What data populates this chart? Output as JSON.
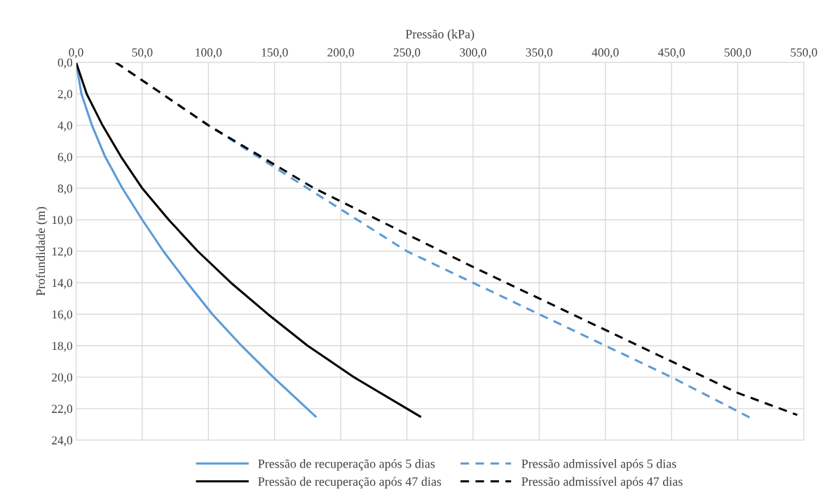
{
  "chart_data": {
    "type": "line",
    "xlabel": "Pressão (kPa)",
    "ylabel": "Profundidade (m)",
    "xlim": [
      0,
      550
    ],
    "ylim": [
      24,
      0
    ],
    "xticks": [
      {
        "value": 0,
        "label": "0,0"
      },
      {
        "value": 50,
        "label": "50,0"
      },
      {
        "value": 100,
        "label": "100,0"
      },
      {
        "value": 150,
        "label": "150,0"
      },
      {
        "value": 200,
        "label": "200,0"
      },
      {
        "value": 250,
        "label": "250,0"
      },
      {
        "value": 300,
        "label": "300,0"
      },
      {
        "value": 350,
        "label": "350,0"
      },
      {
        "value": 400,
        "label": "400,0"
      },
      {
        "value": 450,
        "label": "450,0"
      },
      {
        "value": 500,
        "label": "500,0"
      },
      {
        "value": 550,
        "label": "550,0"
      }
    ],
    "yticks": [
      {
        "value": 0,
        "label": "0,0"
      },
      {
        "value": 2,
        "label": "2,0"
      },
      {
        "value": 4,
        "label": "4,0"
      },
      {
        "value": 6,
        "label": "6,0"
      },
      {
        "value": 8,
        "label": "8,0"
      },
      {
        "value": 10,
        "label": "10,0"
      },
      {
        "value": 12,
        "label": "12,0"
      },
      {
        "value": 14,
        "label": "14,0"
      },
      {
        "value": 16,
        "label": "16,0"
      },
      {
        "value": 18,
        "label": "18,0"
      },
      {
        "value": 20,
        "label": "20,0"
      },
      {
        "value": 22,
        "label": "22,0"
      },
      {
        "value": 24,
        "label": "24,0"
      }
    ],
    "grid": true,
    "legend": "bottom",
    "marker": "none",
    "series": [
      {
        "name": "Pressão de recuperação após 5 dias",
        "color": "#5b9bd5",
        "line_style": "solid",
        "x": [
          0,
          4,
          12,
          22,
          35,
          50,
          66,
          84,
          103,
          125,
          149,
          181
        ],
        "values": [
          0,
          2,
          4,
          6,
          8,
          10,
          12,
          14,
          16,
          18,
          20,
          22.5
        ]
      },
      {
        "name": "Pressão de recuperação após 47 dias",
        "color": "#000000",
        "line_style": "solid",
        "x": [
          0,
          8,
          20,
          34,
          50,
          70,
          92,
          117,
          145,
          175,
          210,
          260
        ],
        "values": [
          0,
          2,
          4,
          6,
          8,
          10,
          12,
          14,
          16,
          18,
          20,
          22.5
        ]
      },
      {
        "name": "Pressão admissível após 5 dias",
        "color": "#5b9bd5",
        "line_style": "dashed",
        "x": [
          30,
          100,
          175,
          250,
          350,
          400,
          450,
          510
        ],
        "values": [
          0,
          4,
          8,
          12,
          16,
          18,
          20,
          22.6
        ]
      },
      {
        "name": "Pressão admissível após 47 dias",
        "color": "#000000",
        "line_style": "dashed",
        "x": [
          30,
          100,
          180,
          300,
          400,
          500,
          545
        ],
        "values": [
          0,
          4,
          8,
          13,
          17,
          21,
          22.4
        ]
      }
    ]
  }
}
